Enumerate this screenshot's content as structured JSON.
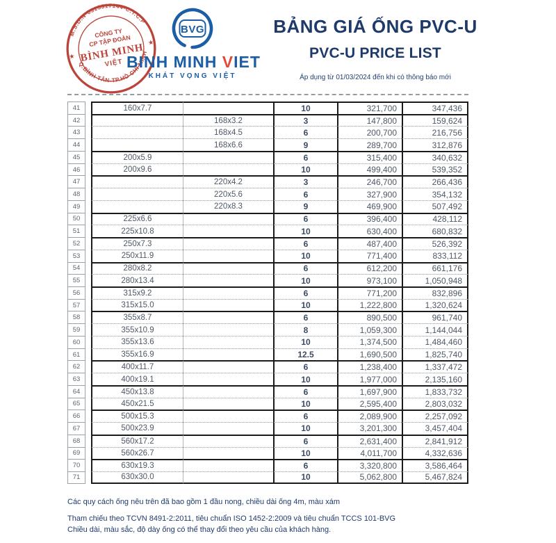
{
  "header": {
    "stamp": {
      "ring_top": "M.S.D.N·0315517144-C.T.C.P",
      "ring_bottom": "Q.BÌNH TÂN-TP.HỒ CHÍ MINH",
      "star_left": "★",
      "star_right": "★",
      "center_line1": "CÔNG TY",
      "center_line2": "CP TẬP ĐOÀN",
      "center_line3": "BÌNH MINH",
      "center_line4": "VIỆT",
      "color": "#b8392f"
    },
    "logo": {
      "monogram": "BVG",
      "name_before": "BINH MINH ",
      "name_v": "V",
      "name_after": "IET",
      "tagline": "KHÁT VỌNG VIỆT",
      "blue": "#1b5ea6",
      "red": "#e04a3a"
    },
    "title_vi": "BẢNG GIÁ ỐNG PVC-U",
    "title_en": "PVC-U PRICE LIST",
    "subtitle": "Áp dụng từ 01/03/2024 đến khi có thông báo mới"
  },
  "table": {
    "rows": [
      {
        "no": "41",
        "size_a": "160x7.7",
        "size_b": "",
        "qty": "10",
        "price1": "321,700",
        "price2": "347,436",
        "gs": true
      },
      {
        "no": "42",
        "size_a": "",
        "size_b": "168x3.2",
        "qty": "3",
        "price1": "147,800",
        "price2": "159,624",
        "gs": true
      },
      {
        "no": "43",
        "size_a": "",
        "size_b": "168x4.5",
        "qty": "6",
        "price1": "200,700",
        "price2": "216,756",
        "gs": false
      },
      {
        "no": "44",
        "size_a": "",
        "size_b": "168x6.6",
        "qty": "9",
        "price1": "289,700",
        "price2": "312,876",
        "gs": false
      },
      {
        "no": "45",
        "size_a": "200x5.9",
        "size_b": "",
        "qty": "6",
        "price1": "315,400",
        "price2": "340,632",
        "gs": true
      },
      {
        "no": "46",
        "size_a": "200x9.6",
        "size_b": "",
        "qty": "10",
        "price1": "499,400",
        "price2": "539,352",
        "gs": false
      },
      {
        "no": "47",
        "size_a": "",
        "size_b": "220x4.2",
        "qty": "3",
        "price1": "246,700",
        "price2": "266,436",
        "gs": true
      },
      {
        "no": "48",
        "size_a": "",
        "size_b": "220x5.6",
        "qty": "6",
        "price1": "327,900",
        "price2": "354,132",
        "gs": false
      },
      {
        "no": "49",
        "size_a": "",
        "size_b": "220x8.3",
        "qty": "9",
        "price1": "469,900",
        "price2": "507,492",
        "gs": false
      },
      {
        "no": "50",
        "size_a": "225x6.6",
        "size_b": "",
        "qty": "6",
        "price1": "396,400",
        "price2": "428,112",
        "gs": true
      },
      {
        "no": "51",
        "size_a": "225x10.8",
        "size_b": "",
        "qty": "10",
        "price1": "630,400",
        "price2": "680,832",
        "gs": false
      },
      {
        "no": "52",
        "size_a": "250x7.3",
        "size_b": "",
        "qty": "6",
        "price1": "487,400",
        "price2": "526,392",
        "gs": true
      },
      {
        "no": "53",
        "size_a": "250x11.9",
        "size_b": "",
        "qty": "10",
        "price1": "771,400",
        "price2": "833,112",
        "gs": false
      },
      {
        "no": "54",
        "size_a": "280x8.2",
        "size_b": "",
        "qty": "6",
        "price1": "612,200",
        "price2": "661,176",
        "gs": true
      },
      {
        "no": "55",
        "size_a": "280x13.4",
        "size_b": "",
        "qty": "10",
        "price1": "973,100",
        "price2": "1,050,948",
        "gs": false
      },
      {
        "no": "56",
        "size_a": "315x9.2",
        "size_b": "",
        "qty": "6",
        "price1": "771,200",
        "price2": "832,896",
        "gs": true
      },
      {
        "no": "57",
        "size_a": "315x15.0",
        "size_b": "",
        "qty": "10",
        "price1": "1,222,800",
        "price2": "1,320,624",
        "gs": false
      },
      {
        "no": "58",
        "size_a": "355x8.7",
        "size_b": "",
        "qty": "6",
        "price1": "890,500",
        "price2": "961,740",
        "gs": true
      },
      {
        "no": "59",
        "size_a": "355x10.9",
        "size_b": "",
        "qty": "8",
        "price1": "1,059,300",
        "price2": "1,144,044",
        "gs": false
      },
      {
        "no": "60",
        "size_a": "355x13.6",
        "size_b": "",
        "qty": "10",
        "price1": "1,374,500",
        "price2": "1,484,460",
        "gs": false
      },
      {
        "no": "61",
        "size_a": "355x16.9",
        "size_b": "",
        "qty": "12.5",
        "price1": "1,690,500",
        "price2": "1,825,740",
        "gs": false
      },
      {
        "no": "62",
        "size_a": "400x11.7",
        "size_b": "",
        "qty": "6",
        "price1": "1,238,400",
        "price2": "1,337,472",
        "gs": true
      },
      {
        "no": "63",
        "size_a": "400x19.1",
        "size_b": "",
        "qty": "10",
        "price1": "1,977,000",
        "price2": "2,135,160",
        "gs": false
      },
      {
        "no": "64",
        "size_a": "450x13.8",
        "size_b": "",
        "qty": "6",
        "price1": "1,697,900",
        "price2": "1,833,732",
        "gs": true
      },
      {
        "no": "65",
        "size_a": "450x21.5",
        "size_b": "",
        "qty": "10",
        "price1": "2,595,400",
        "price2": "2,803,032",
        "gs": false
      },
      {
        "no": "66",
        "size_a": "500x15.3",
        "size_b": "",
        "qty": "6",
        "price1": "2,089,900",
        "price2": "2,257,092",
        "gs": true
      },
      {
        "no": "67",
        "size_a": "500x23.9",
        "size_b": "",
        "qty": "10",
        "price1": "3,201,300",
        "price2": "3,457,404",
        "gs": false
      },
      {
        "no": "68",
        "size_a": "560x17.2",
        "size_b": "",
        "qty": "6",
        "price1": "2,631,400",
        "price2": "2,841,912",
        "gs": true
      },
      {
        "no": "69",
        "size_a": "560x26.7",
        "size_b": "",
        "qty": "10",
        "price1": "4,011,700",
        "price2": "4,332,636",
        "gs": false
      },
      {
        "no": "70",
        "size_a": "630x19.3",
        "size_b": "",
        "qty": "6",
        "price1": "3,320,800",
        "price2": "3,586,464",
        "gs": true
      },
      {
        "no": "71",
        "size_a": "630x30.0",
        "size_b": "",
        "qty": "10",
        "price1": "5,062,800",
        "price2": "5,467,824",
        "gs": false
      }
    ]
  },
  "footer": {
    "notes": [
      "Các quy cách ống nêu trên đã bao gồm 1 đầu nong, chiều dài ống 4m, màu xám",
      "Tham chiếu theo TCVN 8491-2:2011, tiêu chuẩn ISO 1452-2:2009 và tiêu chuẩn TCCS 101-BVG",
      "Chiều dài, màu sắc, độ dày ống có thể thay đổi theo yêu cầu của khách hàng."
    ]
  }
}
